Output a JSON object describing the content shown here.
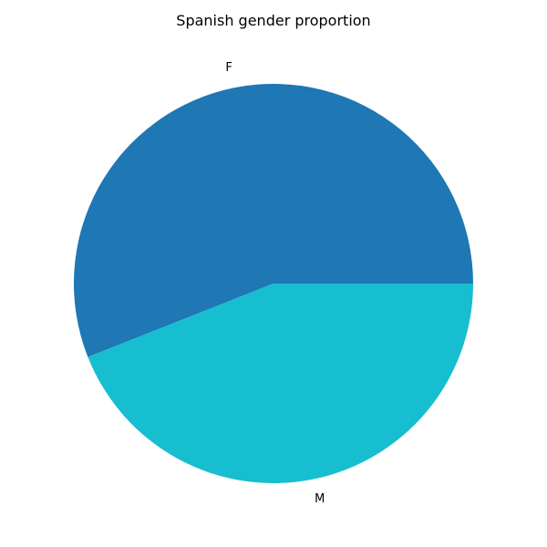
{
  "chart_data": {
    "type": "pie",
    "title": "Spanish gender proportion",
    "labels": [
      "F",
      "M"
    ],
    "values": [
      0.56,
      0.44
    ],
    "colors": [
      "#1f77b4",
      "#17becf"
    ],
    "start_angle_degrees": 0,
    "direction": "counterclockwise",
    "legend": "none"
  }
}
